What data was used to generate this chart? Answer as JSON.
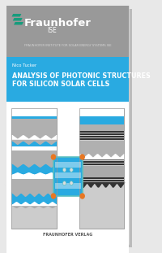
{
  "bg_color": "#e8e8e8",
  "cover_bg": "#ffffff",
  "header_gray": "#999999",
  "blue_band": "#29aae1",
  "fraunhofer_green": "#179C7D",
  "title_text_line1": "ANALYSIS OF PHOTONIC STRUCTURES",
  "title_text_line2": "FOR SILICON SOLAR CELLS",
  "author_text": "Nico Tucker",
  "institute_text": "FRAUNHOFER INSTITUTE FOR SOLAR ENERGY SYSTEMS ISE",
  "publisher_text": "FRAUNHOFER VERLAG",
  "fraunhofer_label": "Fraunhofer",
  "ise_label": "ISE",
  "orange_dot": "#e87722",
  "teal_outline": "#5bbfbf",
  "panel_border": "#999999",
  "dark_line": "#333333",
  "mid_gray": "#aaaaaa",
  "light_gray": "#cccccc",
  "panel_gray": "#b0b0b0"
}
